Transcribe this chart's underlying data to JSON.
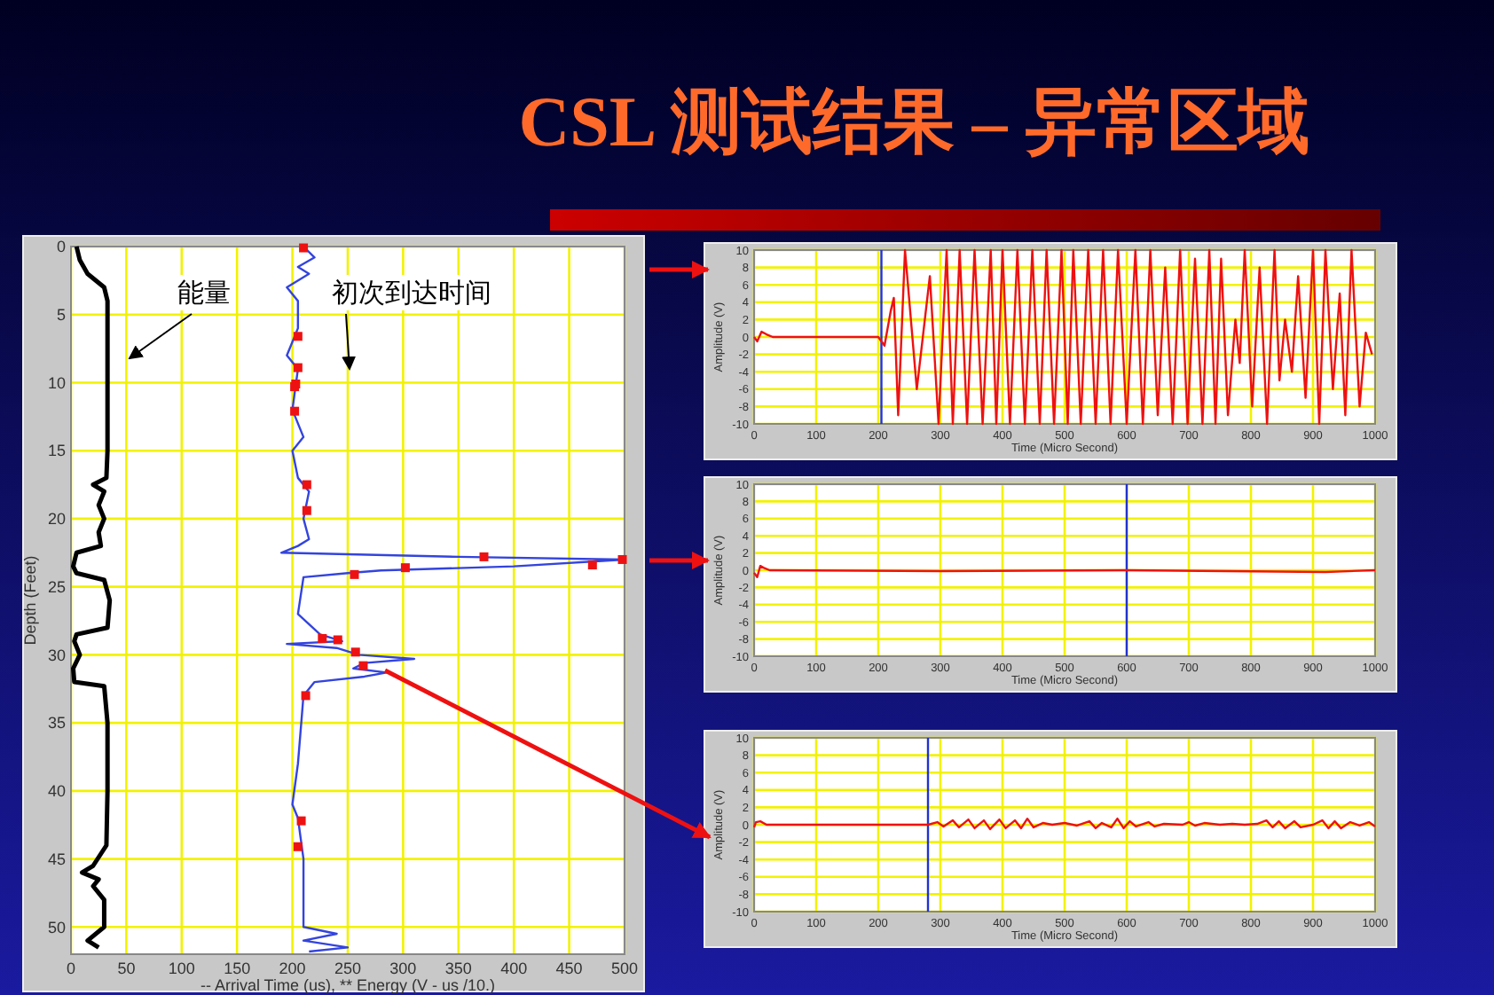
{
  "chart_data": [
    {
      "type": "line",
      "xlabel": "-- Arrival Time (us), ** Energy (V - us /10.)",
      "ylabel": "Depth (Feet)",
      "xlim": [
        0,
        500
      ],
      "xticks": [
        0,
        50,
        100,
        150,
        200,
        250,
        300,
        350,
        400,
        450,
        500
      ],
      "ylim": [
        52,
        0
      ],
      "yticks": [
        0,
        5,
        10,
        15,
        20,
        25,
        30,
        35,
        40,
        45,
        50
      ],
      "grid": true,
      "annotations": [
        "能量",
        "初次到达时间"
      ],
      "series": [
        {
          "color": "#000000",
          "x": [
            5,
            8,
            15,
            30,
            33,
            33,
            33,
            32,
            20,
            30,
            25,
            30,
            25,
            27,
            5,
            2,
            5,
            30,
            35,
            33,
            5,
            3,
            8,
            2,
            3,
            30,
            33,
            33,
            32,
            20,
            10,
            25,
            20,
            30,
            30,
            15,
            25
          ],
          "values": [
            0,
            1,
            2,
            3,
            4,
            10,
            15,
            17,
            17.5,
            18,
            19,
            20,
            21,
            22,
            22.5,
            23.5,
            24,
            24.5,
            26,
            28,
            28.5,
            29,
            30,
            31,
            32,
            32.3,
            35,
            40,
            44,
            45.5,
            46,
            46.5,
            47,
            48,
            50,
            51,
            51.5
          ]
        },
        {
          "color": "#3344dd",
          "x": [
            210,
            220,
            205,
            215,
            195,
            205,
            205,
            195,
            205,
            200,
            210,
            200,
            205,
            215,
            210,
            215,
            205,
            190,
            350,
            500,
            400,
            280,
            250,
            210,
            205,
            225,
            245,
            195,
            240,
            260,
            310,
            265,
            255,
            285,
            265,
            220,
            210,
            205,
            200,
            205,
            210,
            210,
            210,
            240,
            210,
            250,
            215
          ],
          "values": [
            0,
            0.8,
            1.5,
            2,
            3,
            4,
            6,
            8,
            9,
            12,
            14,
            15,
            17,
            18,
            20,
            21.5,
            22,
            22.5,
            22.8,
            23,
            23.5,
            23.8,
            24,
            24.3,
            27,
            28.5,
            29,
            29.2,
            29.5,
            30,
            30.3,
            30.6,
            31,
            31.3,
            31.6,
            32,
            33,
            38,
            41,
            42,
            45,
            48,
            50,
            50.5,
            51,
            51.5,
            51.8
          ]
        },
        {
          "type": "scatter",
          "color": "#ee1111",
          "x": [
            210,
            205,
            205,
            203,
            202,
            202,
            213,
            213,
            373,
            498,
            471,
            302,
            256,
            227,
            241,
            257,
            264,
            212,
            208,
            205
          ],
          "values": [
            0.1,
            6.6,
            8.9,
            10.1,
            10.3,
            12.1,
            17.5,
            19.4,
            22.8,
            23.0,
            23.4,
            23.6,
            24.1,
            28.8,
            28.9,
            29.8,
            30.8,
            33.0,
            42.2,
            44.1
          ]
        }
      ]
    },
    {
      "type": "line",
      "title": "CSL 测试结果 – 异常区域",
      "xlabel": "Time (Micro Second)",
      "ylabel": "Amplitude (V)",
      "xlim": [
        0,
        1000
      ],
      "xticks": [
        0,
        100,
        200,
        300,
        400,
        500,
        600,
        700,
        800,
        900,
        1000
      ],
      "ylim": [
        -10,
        10
      ],
      "yticks": [
        -10,
        -8,
        -6,
        -4,
        -2,
        0,
        2,
        4,
        6,
        8,
        10
      ],
      "grid": true,
      "ref_lines": [
        {
          "axis": "x",
          "value": 205,
          "color": "#2233cc"
        }
      ],
      "series": [
        {
          "color": "#ee1111",
          "x": [
            0,
            5,
            12,
            20,
            30,
            200,
            210,
            220,
            225,
            232,
            243,
            262,
            283,
            297,
            310,
            320,
            331,
            343,
            355,
            368,
            381,
            390,
            400,
            412,
            424,
            436,
            448,
            460,
            471,
            483,
            495,
            505,
            514,
            526,
            538,
            550,
            562,
            574,
            586,
            600,
            614,
            626,
            638,
            650,
            662,
            674,
            686,
            698,
            710,
            722,
            733,
            743,
            752,
            763,
            775,
            782,
            790,
            802,
            814,
            826,
            838,
            846,
            855,
            866,
            876,
            888,
            900,
            910,
            920,
            932,
            943,
            952,
            962,
            975,
            985,
            995
          ],
          "values": [
            0,
            -0.5,
            0.6,
            0.3,
            0,
            0,
            -1,
            3,
            4.5,
            -9,
            10,
            -6,
            7,
            -10,
            10,
            -10,
            10,
            -10,
            10,
            -10,
            10,
            -10,
            10,
            -10,
            10,
            -10,
            10,
            -10,
            10,
            -10,
            10,
            -10,
            10,
            -10,
            10,
            -10,
            10,
            -10,
            10,
            -10,
            10,
            -10,
            10,
            -9,
            8,
            -10,
            10,
            -10,
            9,
            -10,
            10,
            -10,
            9,
            -9,
            2,
            -3,
            10,
            -8,
            8,
            -10,
            10,
            -5,
            2,
            -4,
            7,
            -7,
            10,
            -10,
            10,
            -6,
            5,
            -9,
            10,
            -8,
            0.5,
            -2
          ]
        }
      ]
    },
    {
      "type": "line",
      "xlabel": "Time (Micro Second)",
      "ylabel": "Amplitude (V)",
      "xlim": [
        0,
        1000
      ],
      "xticks": [
        0,
        100,
        200,
        300,
        400,
        500,
        600,
        700,
        800,
        900,
        1000
      ],
      "ylim": [
        -10,
        10
      ],
      "yticks": [
        -10,
        -8,
        -6,
        -4,
        -2,
        0,
        2,
        4,
        6,
        8,
        10
      ],
      "grid": true,
      "ref_lines": [
        {
          "axis": "x",
          "value": 600,
          "color": "#2233cc"
        }
      ],
      "series": [
        {
          "color": "#ee1111",
          "x": [
            0,
            5,
            10,
            15,
            25,
            300,
            600,
            920,
            1000
          ],
          "values": [
            -0.3,
            -0.8,
            0.5,
            0.3,
            0,
            -0.1,
            0,
            -0.2,
            0
          ]
        }
      ]
    },
    {
      "type": "line",
      "xlabel": "Time (Micro Second)",
      "ylabel": "Amplitude (V)",
      "xlim": [
        0,
        1000
      ],
      "xticks": [
        0,
        100,
        200,
        300,
        400,
        500,
        600,
        700,
        800,
        900,
        1000
      ],
      "ylim": [
        -10,
        10
      ],
      "yticks": [
        -10,
        -8,
        -6,
        -4,
        -2,
        0,
        2,
        4,
        6,
        8,
        10
      ],
      "grid": true,
      "ref_lines": [
        {
          "axis": "x",
          "value": 280,
          "color": "#2233cc"
        }
      ],
      "series": [
        {
          "color": "#ee1111",
          "x": [
            0,
            3,
            10,
            20,
            280,
            295,
            305,
            320,
            330,
            345,
            355,
            370,
            380,
            395,
            405,
            420,
            430,
            440,
            450,
            465,
            480,
            500,
            520,
            540,
            550,
            560,
            575,
            585,
            595,
            605,
            615,
            635,
            645,
            660,
            690,
            700,
            710,
            725,
            750,
            770,
            790,
            810,
            825,
            835,
            845,
            855,
            870,
            880,
            900,
            915,
            925,
            935,
            945,
            960,
            975,
            990,
            1000
          ],
          "values": [
            -0.3,
            0.3,
            0.4,
            0,
            0,
            0.3,
            -0.2,
            0.5,
            -0.3,
            0.6,
            -0.4,
            0.5,
            -0.5,
            0.6,
            -0.4,
            0.5,
            -0.4,
            0.7,
            -0.3,
            0.2,
            0,
            0.2,
            -0.1,
            0.4,
            -0.4,
            0.2,
            -0.3,
            0.7,
            -0.4,
            0.4,
            -0.2,
            0.3,
            -0.2,
            0.1,
            0,
            0.3,
            -0.1,
            0.2,
            0,
            0.1,
            0,
            0.1,
            0.5,
            -0.3,
            0.4,
            -0.4,
            0.4,
            -0.3,
            0,
            0.5,
            -0.4,
            0.4,
            -0.4,
            0.3,
            -0.1,
            0.3,
            -0.2
          ]
        }
      ]
    }
  ]
}
